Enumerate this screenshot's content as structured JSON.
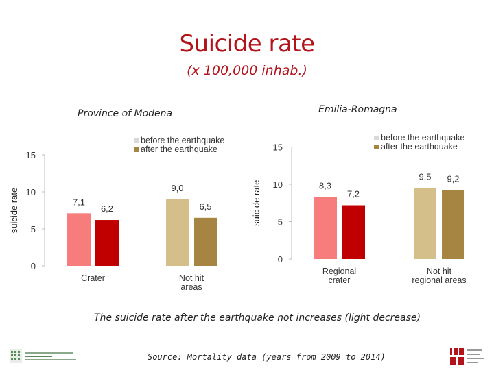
{
  "title": "Suicide rate",
  "subtitle": "(x 100,000 inhab.)",
  "caption": "The suicide rate after the earthquake not increases (light decrease)",
  "source": "Source: Mortality data (years from 2009 to 2014)",
  "colors": {
    "title": "#b3131b",
    "crater_before": "#f77c7c",
    "crater_after": "#c00000",
    "nothit_before": "#d4bf8a",
    "nothit_after": "#a68441",
    "legend_before": "#d9d9d9",
    "legend_after": "#a68441"
  },
  "chart_data": [
    {
      "type": "bar",
      "title": "Province of Modena",
      "ylabel": "suicide rate",
      "ylim": [
        0,
        15
      ],
      "yticks": [
        "0",
        "5",
        "10",
        "15"
      ],
      "legend": [
        "before the earthquake",
        "after the earthquake"
      ],
      "legend_position": "top-right",
      "grid": false,
      "categories": [
        "Crater",
        "Not hit areas"
      ],
      "series": [
        {
          "name": "before the earthquake",
          "values": [
            7.1,
            9.0
          ]
        },
        {
          "name": "after the earthquake",
          "values": [
            6.2,
            6.5
          ]
        }
      ],
      "value_labels": [
        [
          "7,1",
          "9,0"
        ],
        [
          "6,2",
          "6,5"
        ]
      ],
      "category_labels": [
        [
          "Crater"
        ],
        [
          "Not hit",
          "areas"
        ]
      ]
    },
    {
      "type": "bar",
      "title": "Emilia-Romagna",
      "ylabel": "suic de rate",
      "ylim": [
        0,
        15
      ],
      "yticks": [
        "0",
        "5",
        "10",
        "15"
      ],
      "legend": [
        "before the earthquake",
        "after the earthquake"
      ],
      "legend_position": "top-right",
      "grid": false,
      "categories": [
        "Regional crater",
        "Not hit regional areas"
      ],
      "series": [
        {
          "name": "before the earthquake",
          "values": [
            8.3,
            9.5
          ]
        },
        {
          "name": "after the earthquake",
          "values": [
            7.2,
            9.2
          ]
        }
      ],
      "value_labels": [
        [
          "8,3",
          "9,5"
        ],
        [
          "7,2",
          "9,2"
        ]
      ],
      "category_labels": [
        [
          "Regional",
          "crater"
        ],
        [
          "Not hit",
          "regional areas"
        ]
      ]
    }
  ]
}
